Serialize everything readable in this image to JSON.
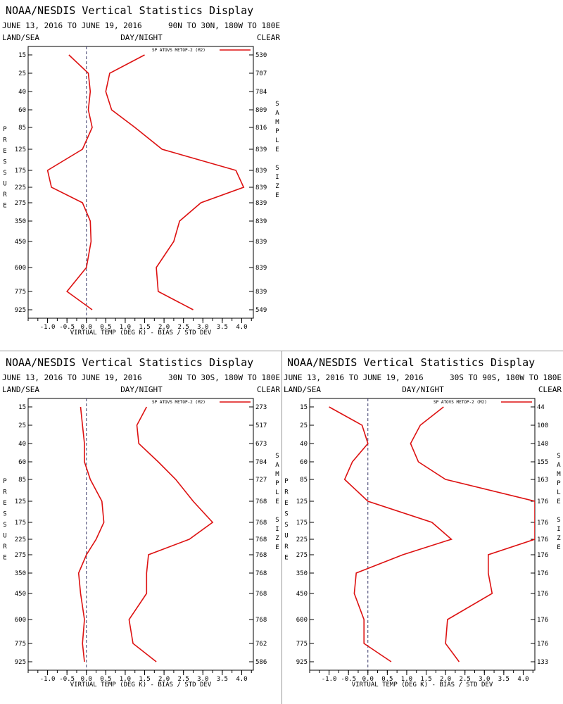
{
  "colors": {
    "series": "#dd1111",
    "zero_line": "#3b3b6b",
    "axis": "#000000"
  },
  "chart_data": [
    {
      "type": "line",
      "title": "NOAA/NESDIS Vertical Statistics Display",
      "date_range": "JUNE 13, 2016 TO JUNE 19, 2016",
      "region": "90N TO 30N, 180W TO 180E",
      "land_sea": "LAND/SEA",
      "day_night": "DAY/NIGHT",
      "clear": "CLEAR",
      "ylabel": "PRESSURE",
      "y2label": "SAMPLE SIZE",
      "xlabel": "VIRTUAL TEMP (DEG K) - BIAS / STD DEV",
      "legend": "SP ATOVS METOP-2 (M2)",
      "xlim": [
        -1.5,
        4.3
      ],
      "xticks": [
        "-1.0",
        "-0.5",
        "0.0",
        "0.5",
        "1.0",
        "1.5",
        "2.0",
        "2.5",
        "3.0",
        "3.5",
        "4.0"
      ],
      "pressure": [
        "15",
        "25",
        "40",
        "60",
        "85",
        "125",
        "175",
        "225",
        "275",
        "350",
        "450",
        "600",
        "775",
        "925"
      ],
      "sample_size": [
        "530",
        "707",
        "784",
        "809",
        "816",
        "839",
        "839",
        "839",
        "839",
        "839",
        "839",
        "839",
        "839",
        "549"
      ],
      "series": [
        {
          "name": "bias",
          "values": [
            -0.45,
            0.05,
            0.1,
            0.05,
            0.15,
            -0.1,
            -1.0,
            -0.9,
            -0.1,
            0.1,
            0.12,
            0.0,
            -0.5,
            0.15
          ]
        },
        {
          "name": "std dev",
          "values": [
            1.5,
            0.6,
            0.5,
            0.65,
            1.25,
            1.95,
            3.85,
            4.05,
            2.95,
            2.4,
            2.25,
            1.8,
            1.85,
            2.75
          ]
        }
      ]
    },
    {
      "type": "line",
      "title": "NOAA/NESDIS Vertical Statistics Display",
      "date_range": "JUNE 13, 2016 TO JUNE 19, 2016",
      "region": "30N TO 30S, 180W TO 180E",
      "land_sea": "LAND/SEA",
      "day_night": "DAY/NIGHT",
      "clear": "CLEAR",
      "ylabel": "PRESSURE",
      "y2label": "SAMPLE SIZE",
      "xlabel": "VIRTUAL TEMP (DEG K) - BIAS / STD DEV",
      "legend": "SP ATOVS METOP-2 (M2)",
      "xlim": [
        -1.5,
        4.3
      ],
      "xticks": [
        "-1.0",
        "-0.5",
        "0.0",
        "0.5",
        "1.0",
        "1.5",
        "2.0",
        "2.5",
        "3.0",
        "3.5",
        "4.0"
      ],
      "pressure": [
        "15",
        "25",
        "40",
        "60",
        "85",
        "125",
        "175",
        "225",
        "275",
        "350",
        "450",
        "600",
        "775",
        "925"
      ],
      "sample_size": [
        "273",
        "517",
        "673",
        "704",
        "727",
        "768",
        "768",
        "768",
        "768",
        "768",
        "768",
        "768",
        "762",
        "586"
      ],
      "series": [
        {
          "name": "bias",
          "values": [
            -0.15,
            -0.1,
            -0.05,
            -0.05,
            0.1,
            0.4,
            0.45,
            0.25,
            0.0,
            -0.2,
            -0.15,
            -0.05,
            -0.1,
            -0.05
          ]
        },
        {
          "name": "std dev",
          "values": [
            1.55,
            1.3,
            1.35,
            1.85,
            2.3,
            2.75,
            3.25,
            2.65,
            1.6,
            1.55,
            1.55,
            1.1,
            1.2,
            1.8
          ]
        }
      ]
    },
    {
      "type": "line",
      "title": "NOAA/NESDIS Vertical Statistics Display",
      "date_range": "JUNE 13, 2016 TO JUNE 19, 2016",
      "region": "30S TO 90S, 180W TO 180E",
      "land_sea": "LAND/SEA",
      "day_night": "DAY/NIGHT",
      "clear": "CLEAR",
      "ylabel": "PRESSURE",
      "y2label": "SAMPLE SIZE",
      "xlabel": "VIRTUAL TEMP (DEG K) - BIAS / STD DEV",
      "legend": "SP ATOVS METOP-2 (M2)",
      "xlim": [
        -1.5,
        4.3
      ],
      "xticks": [
        "-1.0",
        "-0.5",
        "0.0",
        "0.5",
        "1.0",
        "1.5",
        "2.0",
        "2.5",
        "3.0",
        "3.5",
        "4.0"
      ],
      "pressure": [
        "15",
        "25",
        "40",
        "60",
        "85",
        "125",
        "175",
        "225",
        "275",
        "350",
        "450",
        "600",
        "775",
        "925"
      ],
      "sample_size": [
        "44",
        "100",
        "140",
        "155",
        "163",
        "176",
        "176",
        "176",
        "176",
        "176",
        "176",
        "176",
        "176",
        "133"
      ],
      "series": [
        {
          "name": "bias",
          "values": [
            -1.0,
            -0.15,
            0.0,
            -0.4,
            -0.6,
            0.0,
            1.65,
            2.15,
            0.9,
            -0.3,
            -0.35,
            -0.1,
            -0.1,
            0.6
          ]
        },
        {
          "name": "std dev",
          "values": [
            1.95,
            1.35,
            1.1,
            1.3,
            2.0,
            4.3,
            4.3,
            4.3,
            3.1,
            3.1,
            3.2,
            2.05,
            2.0,
            2.35
          ]
        }
      ]
    }
  ]
}
